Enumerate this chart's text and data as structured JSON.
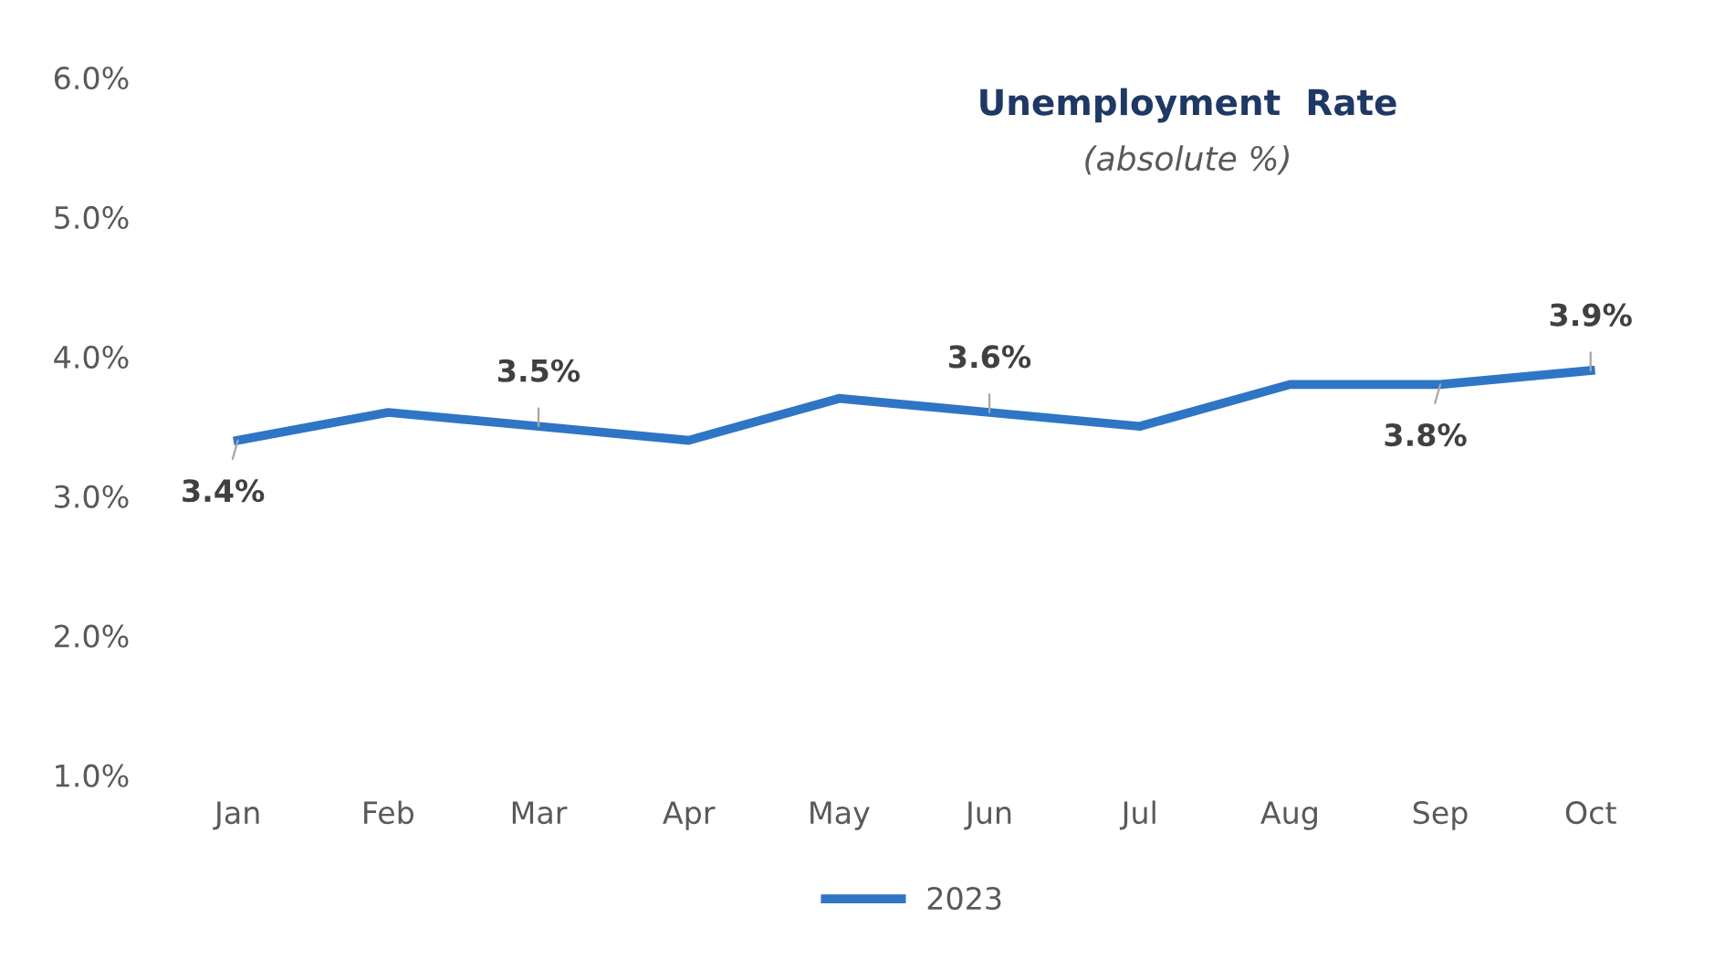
{
  "chart_data": {
    "type": "line",
    "title": "Unemployment  Rate",
    "subtitle": "(absolute %)",
    "categories": [
      "Jan",
      "Feb",
      "Mar",
      "Apr",
      "May",
      "Jun",
      "Jul",
      "Aug",
      "Sep",
      "Oct"
    ],
    "series": [
      {
        "name": "2023",
        "color": "#2e75c6",
        "values": [
          3.4,
          3.6,
          3.5,
          3.4,
          3.7,
          3.6,
          3.5,
          3.8,
          3.8,
          3.9
        ],
        "value_labels": [
          "3.4%",
          null,
          "3.5%",
          null,
          null,
          "3.6%",
          null,
          null,
          "3.8%",
          "3.9%"
        ]
      }
    ],
    "ylim": [
      1.0,
      6.0
    ],
    "yticks": [
      {
        "value": 1.0,
        "label": "1.0%"
      },
      {
        "value": 2.0,
        "label": "2.0%"
      },
      {
        "value": 3.0,
        "label": "3.0%"
      },
      {
        "value": 4.0,
        "label": "4.0%"
      },
      {
        "value": 5.0,
        "label": "5.0%"
      },
      {
        "value": 6.0,
        "label": "6.0%"
      }
    ],
    "grid": false,
    "legend": "bottom",
    "marker": "none",
    "line_style": "solid"
  }
}
